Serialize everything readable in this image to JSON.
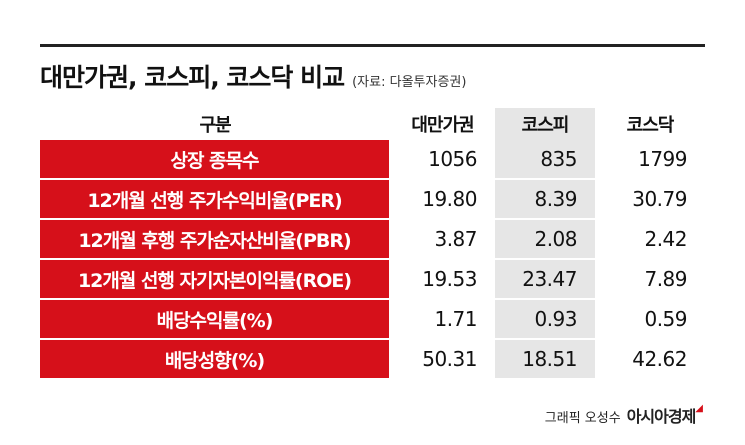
{
  "header": {
    "title": "대만가권, 코스피, 코스닥 비교",
    "source": "(자료: 다올투자증권)"
  },
  "table": {
    "columns": [
      "구분",
      "대만가권",
      "코스피",
      "코스닥"
    ],
    "rows": [
      [
        "상장 종목수",
        "1056",
        "835",
        "1799"
      ],
      [
        "12개월 선행 주가수익비율(PER)",
        "19.80",
        "8.39",
        "30.79"
      ],
      [
        "12개월 후행 주가순자산비율(PBR)",
        "3.87",
        "2.08",
        "2.42"
      ],
      [
        "12개월 선행 자기자본이익률(ROE)",
        "19.53",
        "23.47",
        "7.89"
      ],
      [
        "배당수익률(%)",
        "1.71",
        "0.93",
        "0.59"
      ],
      [
        "배당성향(%)",
        "50.31",
        "18.51",
        "42.62"
      ]
    ]
  },
  "footer": {
    "credit": "그래픽 오성수",
    "brand": "아시아경제"
  }
}
